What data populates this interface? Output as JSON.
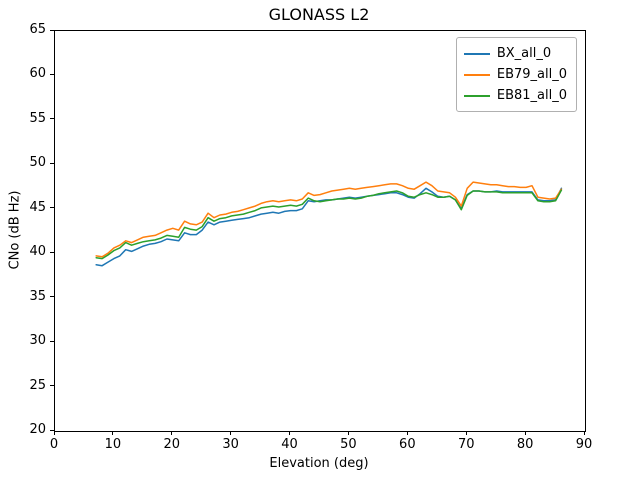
{
  "figure": {
    "background": "#ffffff"
  },
  "chart_data": {
    "type": "line",
    "title": "GLONASS L2",
    "xlabel": "Elevation (deg)",
    "ylabel": "CNo (dB Hz)",
    "xlim": [
      0,
      90
    ],
    "ylim": [
      20,
      65
    ],
    "xticks": [
      0,
      10,
      20,
      30,
      40,
      50,
      60,
      70,
      80,
      90
    ],
    "yticks": [
      20,
      25,
      30,
      35,
      40,
      45,
      50,
      55,
      60,
      65
    ],
    "grid": false,
    "legend_position": "upper right",
    "x": [
      7,
      8,
      9,
      10,
      11,
      12,
      13,
      14,
      15,
      16,
      17,
      18,
      19,
      20,
      21,
      22,
      23,
      24,
      25,
      26,
      27,
      28,
      29,
      30,
      31,
      32,
      33,
      34,
      35,
      36,
      37,
      38,
      39,
      40,
      41,
      42,
      43,
      44,
      45,
      46,
      47,
      48,
      49,
      50,
      51,
      52,
      53,
      54,
      55,
      56,
      57,
      58,
      59,
      60,
      61,
      62,
      63,
      64,
      65,
      66,
      67,
      68,
      69,
      70,
      71,
      72,
      73,
      74,
      75,
      76,
      77,
      78,
      79,
      80,
      81,
      82,
      83,
      84,
      85,
      86
    ],
    "series": [
      {
        "name": "BX_all_0",
        "color": "#1f77b4",
        "values": [
          38.7,
          38.6,
          39.0,
          39.4,
          39.7,
          40.4,
          40.2,
          40.5,
          40.8,
          41.0,
          41.1,
          41.3,
          41.6,
          41.5,
          41.4,
          42.3,
          42.1,
          42.1,
          42.6,
          43.5,
          43.2,
          43.5,
          43.6,
          43.7,
          43.8,
          43.9,
          44.0,
          44.2,
          44.4,
          44.5,
          44.6,
          44.5,
          44.7,
          44.8,
          44.8,
          45.0,
          45.9,
          45.8,
          45.9,
          46.0,
          46.0,
          46.1,
          46.2,
          46.3,
          46.2,
          46.3,
          46.4,
          46.5,
          46.6,
          46.7,
          46.8,
          46.8,
          46.6,
          46.3,
          46.2,
          46.7,
          47.3,
          46.9,
          46.4,
          46.3,
          46.4,
          46.0,
          45.0,
          46.6,
          47.0,
          47.0,
          46.9,
          46.9,
          47.0,
          46.9,
          46.9,
          46.9,
          46.9,
          46.9,
          46.9,
          46.0,
          45.9,
          45.9,
          46.0,
          47.3
        ]
      },
      {
        "name": "EB79_all_0",
        "color": "#ff7f0e",
        "values": [
          39.7,
          39.6,
          40.0,
          40.6,
          40.9,
          41.4,
          41.2,
          41.5,
          41.8,
          41.9,
          42.0,
          42.3,
          42.6,
          42.8,
          42.6,
          43.6,
          43.3,
          43.2,
          43.5,
          44.5,
          44.0,
          44.3,
          44.4,
          44.6,
          44.7,
          44.9,
          45.1,
          45.3,
          45.6,
          45.8,
          45.9,
          45.8,
          45.9,
          46.0,
          45.9,
          46.1,
          46.8,
          46.5,
          46.6,
          46.8,
          47.0,
          47.1,
          47.2,
          47.3,
          47.2,
          47.3,
          47.4,
          47.5,
          47.6,
          47.7,
          47.8,
          47.8,
          47.6,
          47.3,
          47.2,
          47.6,
          48.0,
          47.6,
          47.0,
          46.9,
          46.8,
          46.3,
          45.3,
          47.3,
          48.0,
          47.9,
          47.8,
          47.7,
          47.7,
          47.6,
          47.5,
          47.5,
          47.4,
          47.4,
          47.6,
          46.3,
          46.2,
          46.1,
          46.2,
          47.2
        ]
      },
      {
        "name": "EB81_all_0",
        "color": "#2ca02c",
        "values": [
          39.5,
          39.4,
          39.8,
          40.3,
          40.6,
          41.2,
          40.9,
          41.1,
          41.3,
          41.4,
          41.5,
          41.7,
          42.0,
          41.9,
          41.8,
          42.9,
          42.7,
          42.6,
          43.0,
          44.0,
          43.6,
          43.9,
          44.0,
          44.2,
          44.3,
          44.4,
          44.6,
          44.8,
          45.1,
          45.2,
          45.3,
          45.2,
          45.3,
          45.4,
          45.3,
          45.5,
          46.2,
          45.9,
          45.8,
          45.9,
          46.0,
          46.1,
          46.1,
          46.2,
          46.1,
          46.2,
          46.4,
          46.5,
          46.7,
          46.8,
          46.9,
          47.0,
          46.8,
          46.4,
          46.3,
          46.6,
          46.8,
          46.6,
          46.3,
          46.3,
          46.4,
          46.0,
          44.9,
          46.5,
          47.0,
          47.0,
          46.9,
          46.9,
          46.9,
          46.8,
          46.8,
          46.8,
          46.8,
          46.8,
          46.8,
          45.9,
          45.8,
          45.8,
          45.9,
          47.1
        ]
      }
    ]
  }
}
